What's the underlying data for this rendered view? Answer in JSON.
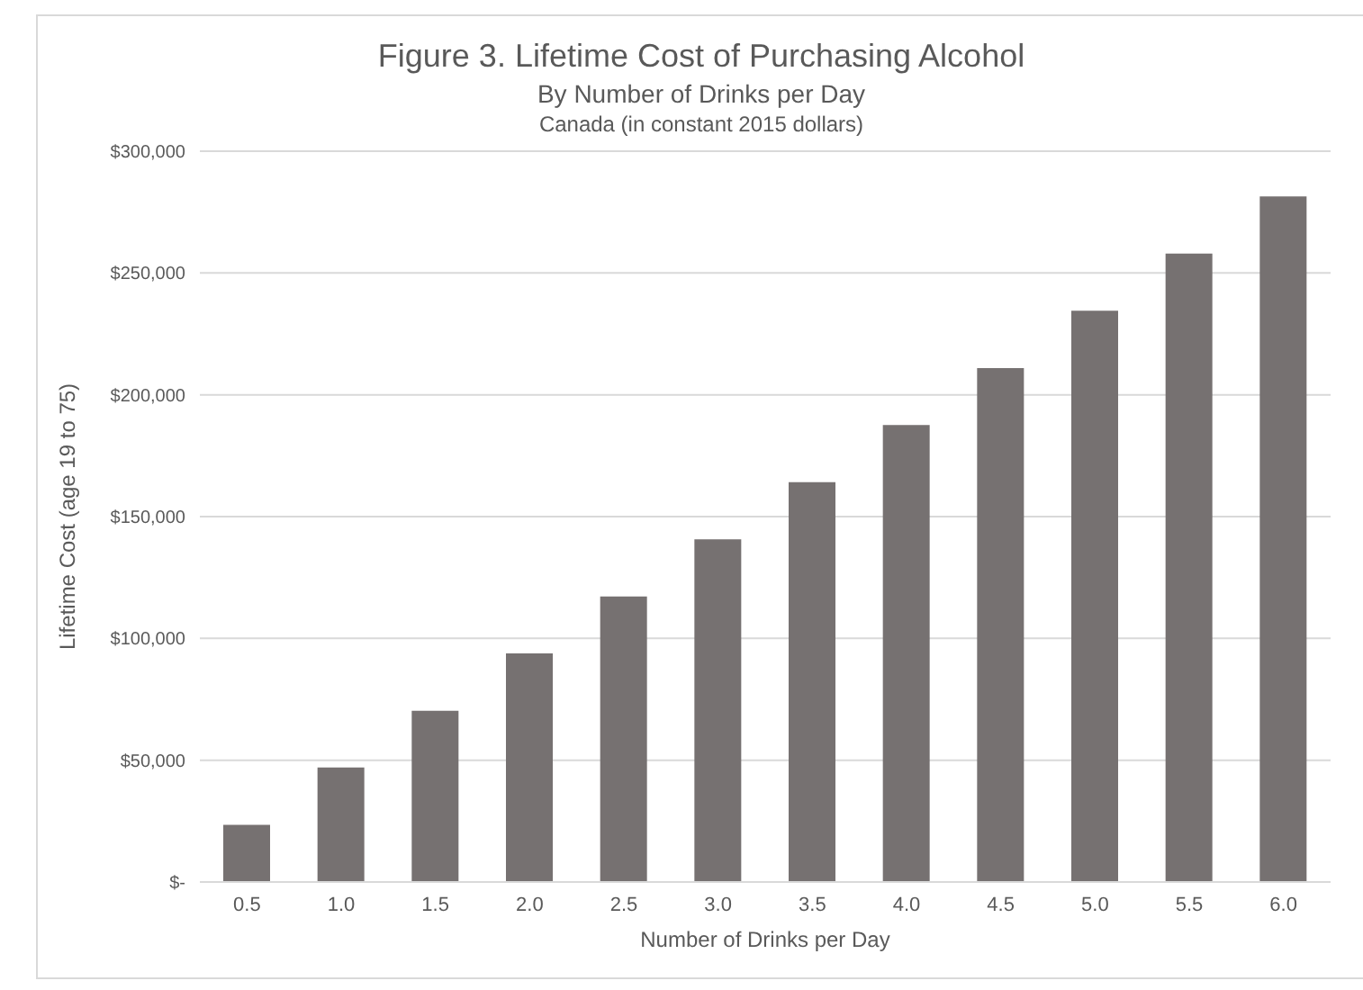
{
  "chart_data": {
    "type": "bar",
    "title": "Figure 3. Lifetime Cost of Purchasing Alcohol",
    "subtitle": "By Number of Drinks per Day\nCanada (in constant 2015 dollars)",
    "xlabel": "Number of Drinks per Day",
    "ylabel": "Lifetime Cost (age 19 to 75)",
    "categories": [
      "0.5",
      "1.0",
      "1.5",
      "2.0",
      "2.5",
      "3.0",
      "3.5",
      "4.0",
      "4.5",
      "5.0",
      "5.5",
      "6.0"
    ],
    "values": [
      23500,
      47000,
      70300,
      93800,
      117200,
      140700,
      164100,
      187600,
      211000,
      234500,
      258000,
      281400
    ],
    "color": "#767171",
    "ylim": [
      0,
      300000
    ],
    "yticks": [
      {
        "value": 0,
        "label": "$-"
      },
      {
        "value": 50000,
        "label": "$50,000"
      },
      {
        "value": 100000,
        "label": "$100,000"
      },
      {
        "value": 150000,
        "label": "$150,000"
      },
      {
        "value": 200000,
        "label": "$200,000"
      },
      {
        "value": 250000,
        "label": "$250,000"
      },
      {
        "value": 300000,
        "label": "$300,000"
      }
    ],
    "grid": "y"
  }
}
